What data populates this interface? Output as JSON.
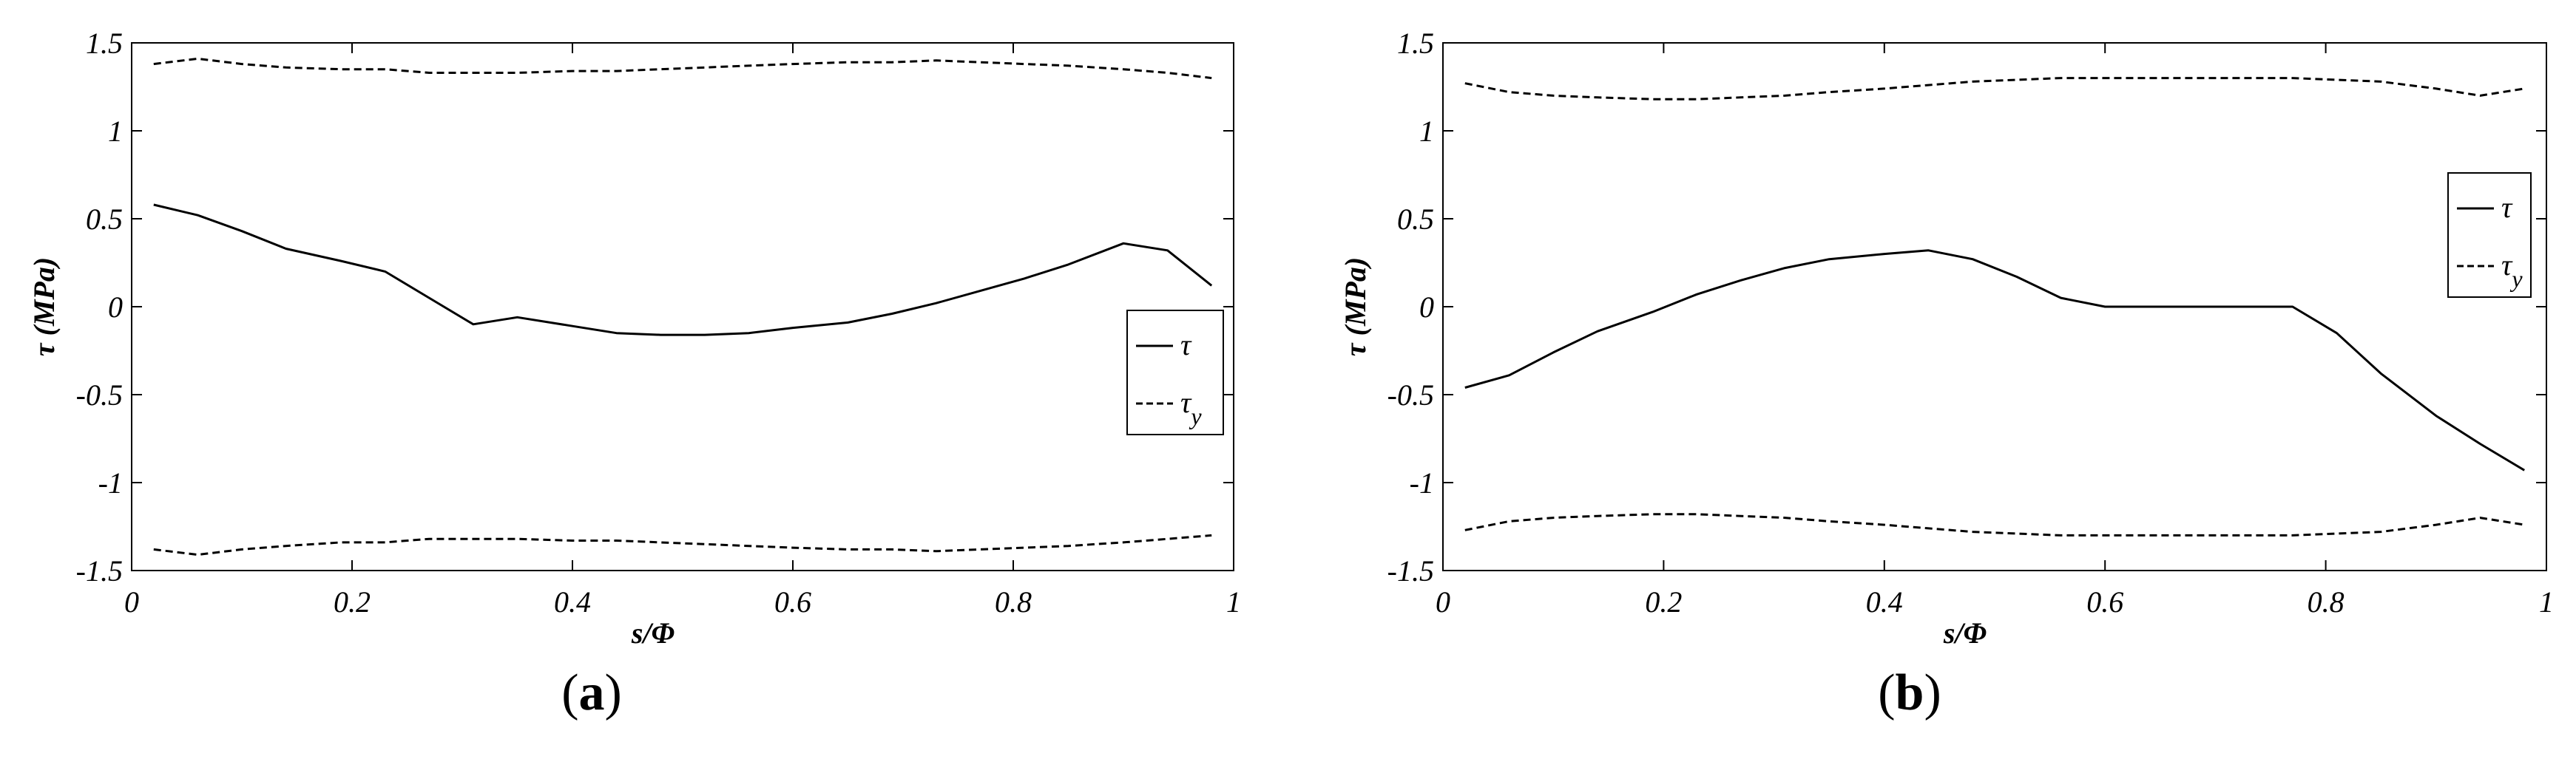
{
  "chart_data": [
    {
      "type": "line",
      "panel_label": "(a)",
      "panel_letter": "a",
      "xlabel": "s/Φ",
      "ylabel": "τ (MPa)",
      "xlim": [
        0,
        1
      ],
      "ylim": [
        -1.5,
        1.5
      ],
      "xticks": [
        "0",
        "0.2",
        "0.4",
        "0.6",
        "0.8",
        "1"
      ],
      "yticks": [
        "1.5",
        "1",
        "0.5",
        "0",
        "-0.5",
        "-1",
        "-1.5"
      ],
      "grid": false,
      "legend_position": "right",
      "legend": [
        {
          "label": "τ",
          "subscript": "",
          "style": "solid"
        },
        {
          "label": "τ",
          "subscript": "y",
          "style": "dashed"
        }
      ],
      "series": [
        {
          "style": "solid",
          "x": [
            0.02,
            0.06,
            0.1,
            0.14,
            0.19,
            0.23,
            0.27,
            0.31,
            0.35,
            0.4,
            0.44,
            0.48,
            0.52,
            0.56,
            0.6,
            0.65,
            0.69,
            0.73,
            0.77,
            0.81,
            0.85,
            0.9,
            0.94,
            0.98
          ],
          "y": [
            0.58,
            0.52,
            0.43,
            0.33,
            0.26,
            0.2,
            0.05,
            -0.1,
            -0.06,
            -0.11,
            -0.15,
            -0.16,
            -0.16,
            -0.15,
            -0.12,
            -0.09,
            -0.04,
            0.02,
            0.09,
            0.16,
            0.24,
            0.36,
            0.32,
            0.12
          ]
        },
        {
          "style": "dashed",
          "x": [
            0.02,
            0.06,
            0.1,
            0.14,
            0.19,
            0.23,
            0.27,
            0.31,
            0.35,
            0.4,
            0.44,
            0.48,
            0.52,
            0.56,
            0.6,
            0.65,
            0.69,
            0.73,
            0.77,
            0.81,
            0.85,
            0.9,
            0.94,
            0.98
          ],
          "y": [
            1.38,
            1.41,
            1.38,
            1.36,
            1.35,
            1.35,
            1.33,
            1.33,
            1.33,
            1.34,
            1.34,
            1.35,
            1.36,
            1.37,
            1.38,
            1.39,
            1.39,
            1.4,
            1.39,
            1.38,
            1.37,
            1.35,
            1.33,
            1.3
          ]
        },
        {
          "style": "dashed",
          "x": [
            0.02,
            0.06,
            0.1,
            0.14,
            0.19,
            0.23,
            0.27,
            0.31,
            0.35,
            0.4,
            0.44,
            0.48,
            0.52,
            0.56,
            0.6,
            0.65,
            0.69,
            0.73,
            0.77,
            0.81,
            0.85,
            0.9,
            0.94,
            0.98
          ],
          "y": [
            -1.38,
            -1.41,
            -1.38,
            -1.36,
            -1.34,
            -1.34,
            -1.32,
            -1.32,
            -1.32,
            -1.33,
            -1.33,
            -1.34,
            -1.35,
            -1.36,
            -1.37,
            -1.38,
            -1.38,
            -1.39,
            -1.38,
            -1.37,
            -1.36,
            -1.34,
            -1.32,
            -1.3
          ]
        }
      ]
    },
    {
      "type": "line",
      "panel_label": "(b)",
      "panel_letter": "b",
      "xlabel": "s/Φ",
      "ylabel": "τ (MPa)",
      "xlim": [
        0,
        1
      ],
      "ylim": [
        -1.5,
        1.5
      ],
      "xticks": [
        "0",
        "0.2",
        "0.4",
        "0.6",
        "0.8",
        "1"
      ],
      "yticks": [
        "1.5",
        "1",
        "0.5",
        "0",
        "-0.5",
        "-1",
        "-1.5"
      ],
      "grid": false,
      "legend_position": "top-right",
      "legend": [
        {
          "label": "τ",
          "subscript": "",
          "style": "solid"
        },
        {
          "label": "τ",
          "subscript": "y",
          "style": "dashed"
        }
      ],
      "series": [
        {
          "style": "solid",
          "x": [
            0.02,
            0.06,
            0.1,
            0.14,
            0.19,
            0.23,
            0.27,
            0.31,
            0.35,
            0.4,
            0.44,
            0.48,
            0.52,
            0.56,
            0.6,
            0.65,
            0.69,
            0.73,
            0.77,
            0.81,
            0.85,
            0.9,
            0.94,
            0.98
          ],
          "y": [
            -0.46,
            -0.39,
            -0.26,
            -0.14,
            -0.03,
            0.07,
            0.15,
            0.22,
            0.27,
            0.3,
            0.32,
            0.27,
            0.17,
            0.05,
            0.0,
            0.0,
            0.0,
            0.0,
            0.0,
            -0.15,
            -0.38,
            -0.62,
            -0.78,
            -0.93
          ]
        },
        {
          "style": "dashed",
          "x": [
            0.02,
            0.06,
            0.1,
            0.14,
            0.19,
            0.23,
            0.27,
            0.31,
            0.35,
            0.4,
            0.44,
            0.48,
            0.52,
            0.56,
            0.6,
            0.65,
            0.69,
            0.73,
            0.77,
            0.81,
            0.85,
            0.9,
            0.94,
            0.98
          ],
          "y": [
            1.27,
            1.22,
            1.2,
            1.19,
            1.18,
            1.18,
            1.19,
            1.2,
            1.22,
            1.24,
            1.26,
            1.28,
            1.29,
            1.3,
            1.3,
            1.3,
            1.3,
            1.3,
            1.3,
            1.29,
            1.28,
            1.24,
            1.2,
            1.24
          ]
        },
        {
          "style": "dashed",
          "x": [
            0.02,
            0.06,
            0.1,
            0.14,
            0.19,
            0.23,
            0.27,
            0.31,
            0.35,
            0.4,
            0.44,
            0.48,
            0.52,
            0.56,
            0.6,
            0.65,
            0.69,
            0.73,
            0.77,
            0.81,
            0.85,
            0.9,
            0.94,
            0.98
          ],
          "y": [
            -1.27,
            -1.22,
            -1.2,
            -1.19,
            -1.18,
            -1.18,
            -1.19,
            -1.2,
            -1.22,
            -1.24,
            -1.26,
            -1.28,
            -1.29,
            -1.3,
            -1.3,
            -1.3,
            -1.3,
            -1.3,
            -1.3,
            -1.29,
            -1.28,
            -1.24,
            -1.2,
            -1.24
          ]
        }
      ]
    }
  ]
}
